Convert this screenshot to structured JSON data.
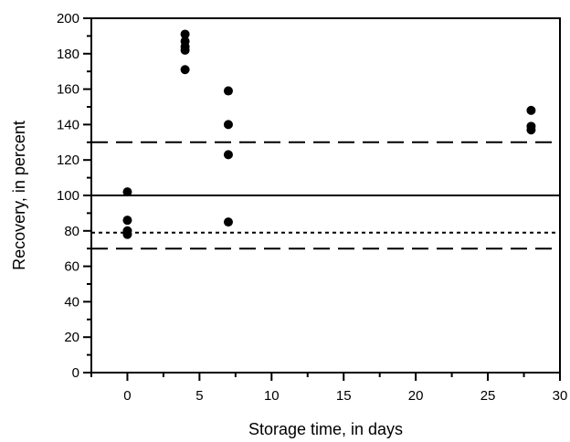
{
  "chart_data": {
    "type": "scatter",
    "title": "",
    "xlabel": "Storage time, in days",
    "ylabel": "Recovery, in percent",
    "xlim": [
      -2.5,
      30
    ],
    "ylim": [
      0,
      200
    ],
    "xticks": [
      0,
      5,
      10,
      15,
      20,
      25,
      30
    ],
    "xminor_step": 2.5,
    "yticks": [
      0,
      20,
      40,
      60,
      80,
      100,
      120,
      140,
      160,
      180,
      200
    ],
    "yminor_step": 10,
    "grid": false,
    "legend": "none",
    "marker_color": "#000000",
    "points": [
      {
        "x": 0,
        "y": 102
      },
      {
        "x": 0,
        "y": 86
      },
      {
        "x": 0,
        "y": 80
      },
      {
        "x": 0,
        "y": 78
      },
      {
        "x": 4,
        "y": 191
      },
      {
        "x": 4,
        "y": 187
      },
      {
        "x": 4,
        "y": 184
      },
      {
        "x": 4,
        "y": 182
      },
      {
        "x": 4,
        "y": 171
      },
      {
        "x": 7,
        "y": 159
      },
      {
        "x": 7,
        "y": 140
      },
      {
        "x": 7,
        "y": 123
      },
      {
        "x": 7,
        "y": 85
      },
      {
        "x": 28,
        "y": 148
      },
      {
        "x": 28,
        "y": 139
      },
      {
        "x": 28,
        "y": 137
      }
    ],
    "reference_lines": [
      {
        "y": 130,
        "style": "dashed"
      },
      {
        "y": 100,
        "style": "solid"
      },
      {
        "y": 79,
        "style": "dotted"
      },
      {
        "y": 70,
        "style": "dashed"
      }
    ]
  }
}
